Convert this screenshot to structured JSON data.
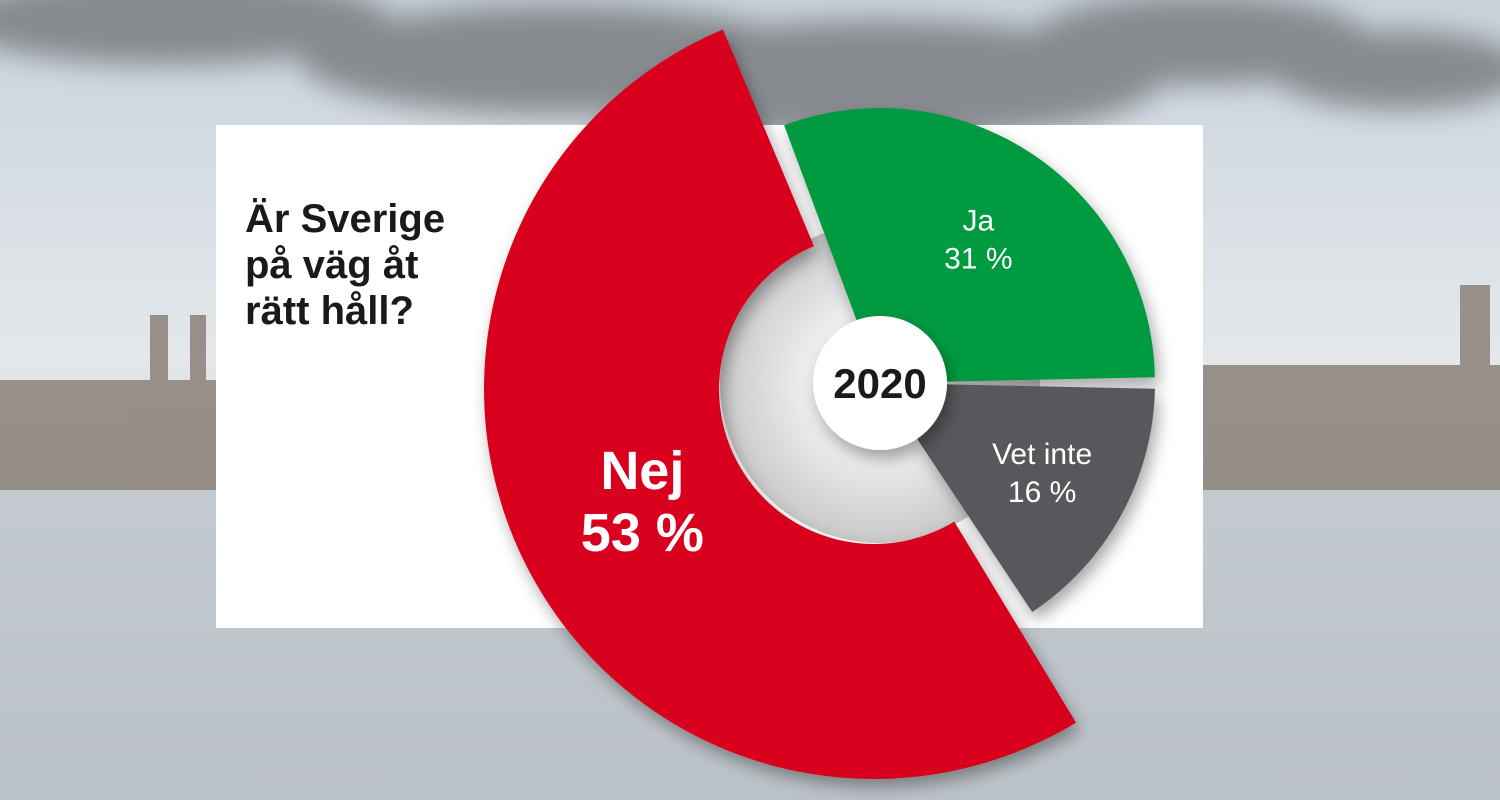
{
  "chart_data": {
    "type": "pie",
    "title": "Är Sverige på väg åt rätt håll?",
    "center_label": "2020",
    "categories": [
      "Ja",
      "Vet inte",
      "Nej"
    ],
    "values": [
      31,
      16,
      53
    ],
    "value_labels": [
      "31 %",
      "16 %",
      "53 %"
    ],
    "colors": [
      "#009a3f",
      "#58595b",
      "#d8001a"
    ]
  }
}
